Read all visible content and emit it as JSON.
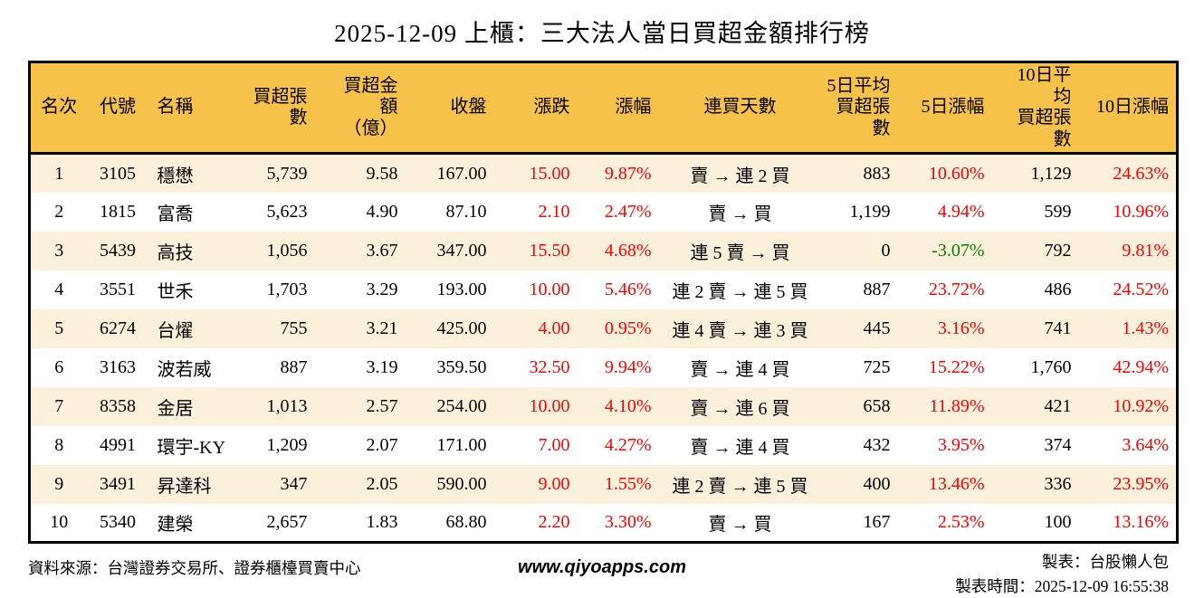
{
  "page": {
    "title": "2025-12-09 上櫃：三大法人當日買超金額排行榜"
  },
  "chart_data": {
    "type": "table",
    "title": "2025-12-09 上櫃：三大法人當日買超金額排行榜",
    "columns": [
      {
        "key": "rank",
        "label": "名次"
      },
      {
        "key": "code",
        "label": "代號"
      },
      {
        "key": "name",
        "label": "名稱"
      },
      {
        "key": "net_buy_volume",
        "label": "買超張數"
      },
      {
        "key": "net_buy_amount",
        "label": "買超金額\n（億）"
      },
      {
        "key": "close",
        "label": "收盤"
      },
      {
        "key": "change",
        "label": "漲跌"
      },
      {
        "key": "change_pct",
        "label": "漲幅"
      },
      {
        "key": "streak",
        "label": "連買天數"
      },
      {
        "key": "avg5_volume",
        "label": "5日平均\n買超張數"
      },
      {
        "key": "pct5",
        "label": "5日漲幅"
      },
      {
        "key": "avg10_volume",
        "label": "10日平均\n買超張數"
      },
      {
        "key": "pct10",
        "label": "10日漲幅"
      }
    ],
    "colored_columns": [
      "change",
      "change_pct",
      "pct5",
      "pct10"
    ],
    "rows": [
      [
        "1",
        "3105",
        "穩懋",
        "5,739",
        "9.58",
        "167.00",
        "15.00",
        "9.87%",
        "賣 → 連 2 買",
        "883",
        "10.60%",
        "1,129",
        "24.63%"
      ],
      [
        "2",
        "1815",
        "富喬",
        "5,623",
        "4.90",
        "87.10",
        "2.10",
        "2.47%",
        "賣 → 買",
        "1,199",
        "4.94%",
        "599",
        "10.96%"
      ],
      [
        "3",
        "5439",
        "高技",
        "1,056",
        "3.67",
        "347.00",
        "15.50",
        "4.68%",
        "連 5 賣 → 買",
        "0",
        "-3.07%",
        "792",
        "9.81%"
      ],
      [
        "4",
        "3551",
        "世禾",
        "1,703",
        "3.29",
        "193.00",
        "10.00",
        "5.46%",
        "連 2 賣 → 連 5 買",
        "887",
        "23.72%",
        "486",
        "24.52%"
      ],
      [
        "5",
        "6274",
        "台燿",
        "755",
        "3.21",
        "425.00",
        "4.00",
        "0.95%",
        "連 4 賣 → 連 3 買",
        "445",
        "3.16%",
        "741",
        "1.43%"
      ],
      [
        "6",
        "3163",
        "波若威",
        "887",
        "3.19",
        "359.50",
        "32.50",
        "9.94%",
        "賣 → 連 4 買",
        "725",
        "15.22%",
        "1,760",
        "42.94%"
      ],
      [
        "7",
        "8358",
        "金居",
        "1,013",
        "2.57",
        "254.00",
        "10.00",
        "4.10%",
        "賣 → 連 6 買",
        "658",
        "11.89%",
        "421",
        "10.92%"
      ],
      [
        "8",
        "4991",
        "環宇-KY",
        "1,209",
        "2.07",
        "171.00",
        "7.00",
        "4.27%",
        "賣 → 連 4 買",
        "432",
        "3.95%",
        "374",
        "3.64%"
      ],
      [
        "9",
        "3491",
        "昇達科",
        "347",
        "2.05",
        "590.00",
        "9.00",
        "1.55%",
        "連 2 賣 → 連 5 買",
        "400",
        "13.46%",
        "336",
        "23.95%"
      ],
      [
        "10",
        "5340",
        "建榮",
        "2,657",
        "1.83",
        "68.80",
        "2.20",
        "3.30%",
        "賣 → 買",
        "167",
        "2.53%",
        "100",
        "13.16%"
      ]
    ]
  },
  "footer": {
    "source": "資料來源：台灣證券交易所、證券櫃檯買賣中心",
    "website": "www.qiyoapps.com",
    "maker": "製表：台股懶人包",
    "timestamp": "製表時間：2025-12-09 16:55:38"
  },
  "colors": {
    "header_bg": "#F6C24A",
    "row_stripe": "#FBF1DB",
    "up": "#FF0000",
    "down": "#008000",
    "border": "#000000"
  }
}
